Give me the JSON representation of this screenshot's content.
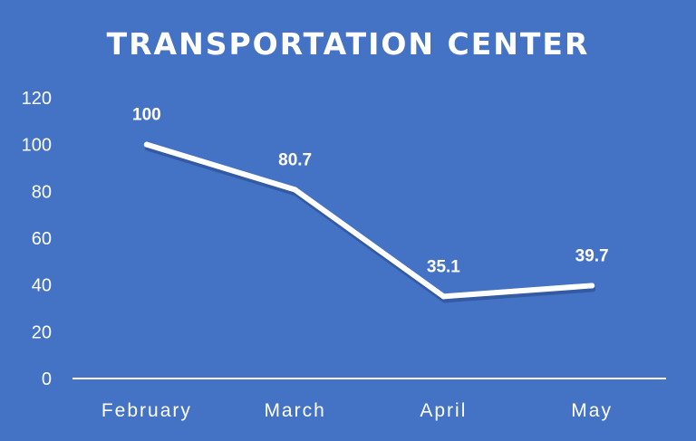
{
  "colors": {
    "background": "#4472c4",
    "line": "#ffffff",
    "text": "#ffffff"
  },
  "chart_data": {
    "type": "line",
    "title": "TRANSPORTATION CENTER",
    "xlabel": "",
    "ylabel": "",
    "categories": [
      "February",
      "March",
      "April",
      "May"
    ],
    "series": [
      {
        "values": [
          100,
          80.7,
          35.1,
          39.7
        ]
      }
    ],
    "data_labels": [
      "100",
      "80.7",
      "35.1",
      "39.7"
    ],
    "ylim": [
      0,
      120
    ],
    "yticks": [
      0,
      20,
      40,
      60,
      80,
      100,
      120
    ],
    "grid": false,
    "drop_lines": true,
    "legend": "none"
  }
}
